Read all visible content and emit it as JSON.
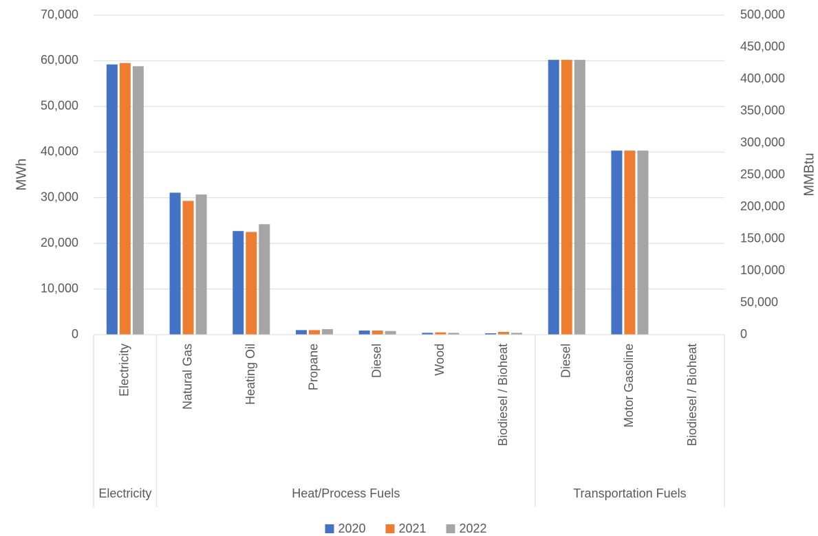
{
  "chart_data": {
    "type": "bar",
    "title": "",
    "ylabel": "MWh",
    "y2label": "MMBtu",
    "ylim": [
      0,
      70000
    ],
    "y2lim": [
      0,
      500000
    ],
    "yticks": [
      "0",
      "10,000",
      "20,000",
      "30,000",
      "40,000",
      "50,000",
      "60,000",
      "70,000"
    ],
    "y2ticks": [
      "0",
      "50,000",
      "100,000",
      "150,000",
      "200,000",
      "250,000",
      "300,000",
      "350,000",
      "400,000",
      "450,000",
      "500,000"
    ],
    "groups": [
      {
        "label": "Electricity",
        "count": 1
      },
      {
        "label": "Heat/Process Fuels",
        "count": 6
      },
      {
        "label": "Transportation Fuels",
        "count": 3
      }
    ],
    "categories": [
      "Electricity",
      "Natural Gas",
      "Heating Oil",
      "Propane",
      "Diesel",
      "Wood",
      "Biodiesel / Bioheat",
      "Diesel",
      "Motor Gasoline",
      "Biodiesel / Bioheat"
    ],
    "axis": [
      "primary",
      "primary",
      "primary",
      "primary",
      "primary",
      "primary",
      "primary",
      "secondary",
      "secondary",
      "secondary"
    ],
    "series": [
      {
        "name": "2020",
        "color": "#4472C4",
        "values": [
          59200,
          31100,
          22700,
          1000,
          900,
          400,
          300,
          430000,
          288000,
          400
        ]
      },
      {
        "name": "2021",
        "color": "#ED7D31",
        "values": [
          59500,
          29300,
          22500,
          1000,
          900,
          500,
          600,
          430000,
          288000,
          400
        ]
      },
      {
        "name": "2022",
        "color": "#A5A5A5",
        "values": [
          58800,
          30700,
          24200,
          1200,
          800,
          400,
          400,
          430000,
          288000,
          400
        ]
      }
    ],
    "grid": true,
    "legend": "bottom"
  }
}
